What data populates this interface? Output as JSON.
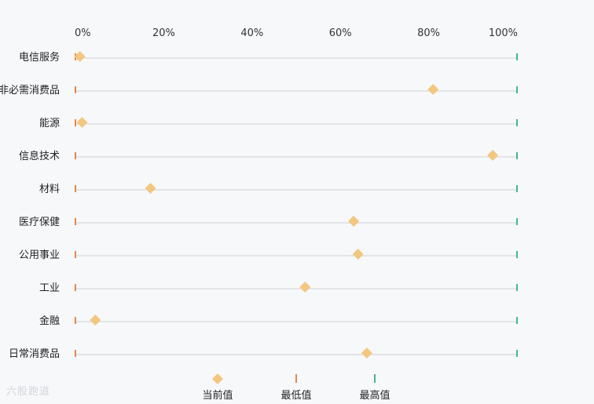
{
  "chart_data": {
    "type": "range-dot",
    "categories": [
      "电信服务",
      "非必需消费品",
      "能源",
      "信息技术",
      "材料",
      "医疗保健",
      "公用事业",
      "工业",
      "金融",
      "日常消费品"
    ],
    "series": [
      {
        "name": "当前值",
        "values": [
          1,
          81,
          1.5,
          94.5,
          17,
          63,
          64,
          52,
          4.5,
          66
        ],
        "color": "#f2c77f"
      },
      {
        "name": "最低值",
        "values": [
          0,
          0,
          0,
          0,
          0,
          0,
          0,
          0,
          0,
          0
        ],
        "color": "#e2884c"
      },
      {
        "name": "最高值",
        "values": [
          100,
          100,
          100,
          100,
          100,
          100,
          100,
          100,
          100,
          100
        ],
        "color": "#3fb98f"
      }
    ],
    "x_ticks": [
      "0%",
      "20%",
      "40%",
      "60%",
      "80%",
      "100%"
    ],
    "xlim": [
      0,
      100
    ],
    "legend": "bottom",
    "grid": false
  },
  "watermark": "六股跑道"
}
